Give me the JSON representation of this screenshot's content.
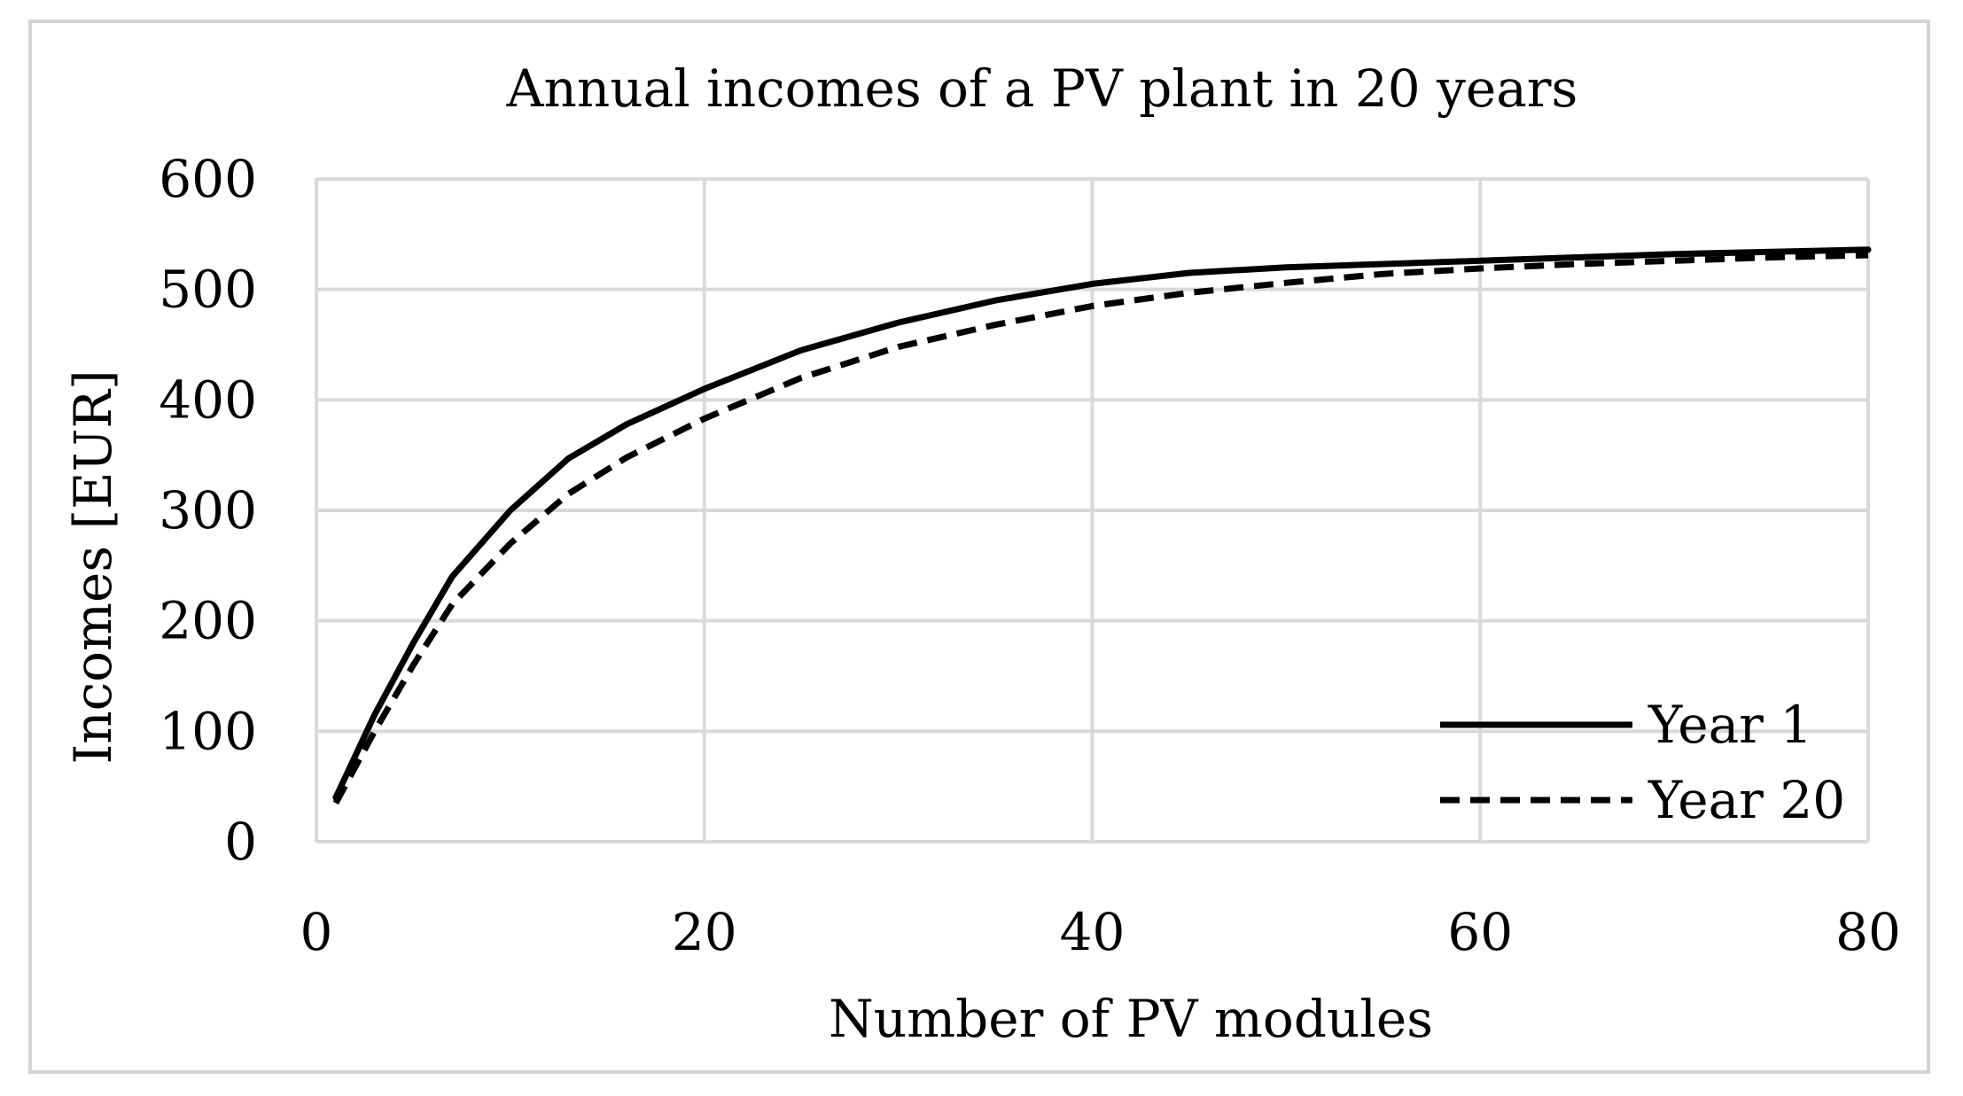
{
  "chart_data": {
    "type": "line",
    "title": "Annual incomes of a PV plant in 20 years",
    "xlabel": "Number of PV modules",
    "ylabel": "Incomes [EUR]",
    "xlim": [
      0,
      80
    ],
    "ylim": [
      0,
      600
    ],
    "xticks": [
      0,
      20,
      40,
      60,
      80
    ],
    "yticks": [
      0,
      100,
      200,
      300,
      400,
      500,
      600
    ],
    "grid": true,
    "legend_position": "bottom-right",
    "series": [
      {
        "name": "Year 1",
        "style": "solid",
        "color": "#000000",
        "x": [
          1,
          3,
          5,
          7,
          10,
          13,
          16,
          20,
          25,
          30,
          35,
          40,
          45,
          50,
          55,
          60,
          65,
          70,
          75,
          80
        ],
        "y": [
          40,
          115,
          180,
          240,
          300,
          347,
          378,
          410,
          445,
          470,
          490,
          505,
          515,
          520,
          523,
          526,
          529,
          532,
          534,
          536
        ]
      },
      {
        "name": "Year 20",
        "style": "dashed",
        "color": "#000000",
        "x": [
          1,
          3,
          5,
          7,
          10,
          13,
          16,
          20,
          25,
          30,
          35,
          40,
          45,
          50,
          55,
          60,
          65,
          70,
          75,
          80
        ],
        "y": [
          35,
          100,
          160,
          215,
          270,
          315,
          348,
          383,
          420,
          448,
          468,
          485,
          497,
          506,
          514,
          519,
          523,
          526,
          529,
          531
        ]
      }
    ]
  }
}
